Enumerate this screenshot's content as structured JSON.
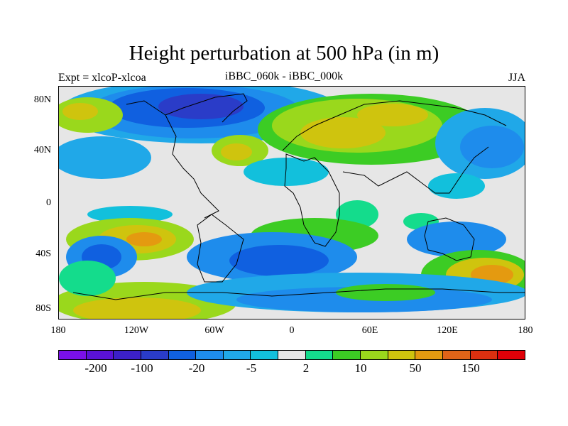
{
  "title": "Height perturbation at 500 hPa (in m)",
  "left_label": "Expt = xlcoP-xlcoa",
  "center_label": "iBBC_060k - iBBC_000k",
  "right_label": "JJA",
  "lat_ticks": [
    "80N",
    "40N",
    "0",
    "40S",
    "80S"
  ],
  "lon_ticks": [
    "180",
    "120W",
    "60W",
    "0",
    "60E",
    "120E",
    "180"
  ],
  "colorbar": {
    "colors": [
      "#7a10e8",
      "#5a12d8",
      "#3c20c8",
      "#2a3cc8",
      "#1060e0",
      "#1e8cec",
      "#20a8e8",
      "#12c0dc",
      "#e6e6e6",
      "#14dc8c",
      "#3ccc24",
      "#9ad81c",
      "#cfc40e",
      "#e49a10",
      "#e06418",
      "#dc3010",
      "#e00008"
    ],
    "labels": [
      "-200",
      "-100",
      "-20",
      "-5",
      "2",
      "10",
      "50",
      "150"
    ]
  },
  "map_legend": {
    "background": "#e6e6e6",
    "coastline": "#000000"
  }
}
